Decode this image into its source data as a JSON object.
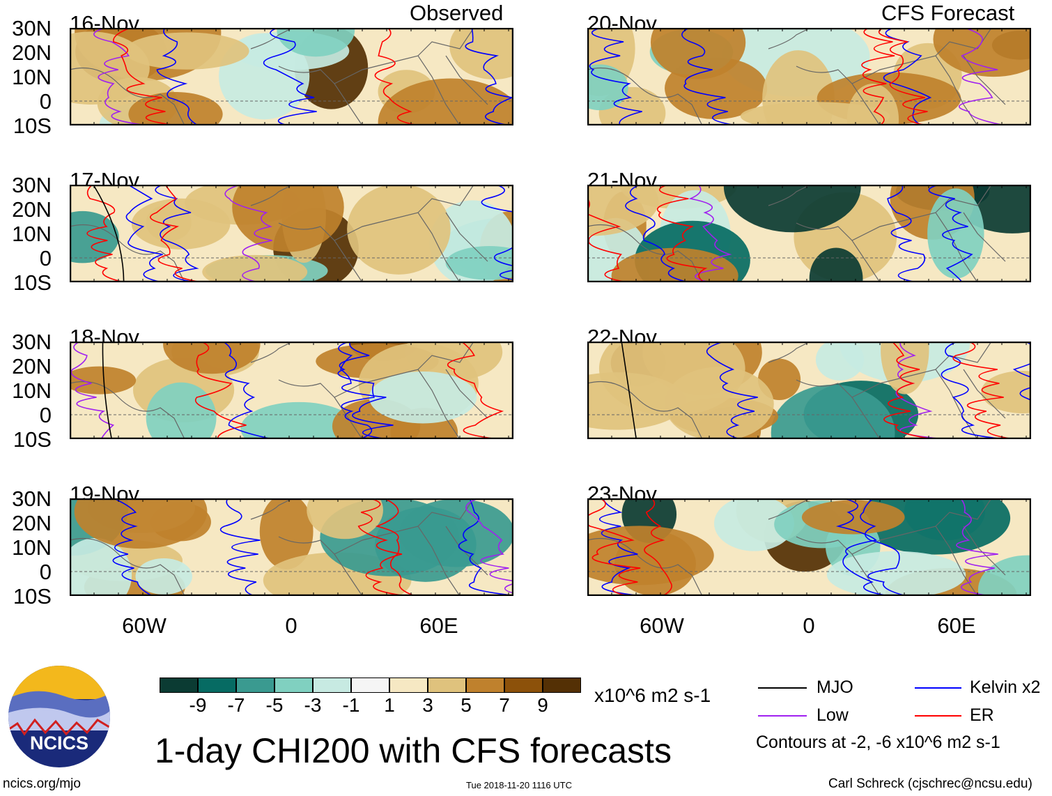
{
  "headers": {
    "left": "Observed",
    "right": "CFS Forecast"
  },
  "panels_left": [
    {
      "date": "16-Nov"
    },
    {
      "date": "17-Nov"
    },
    {
      "date": "18-Nov"
    },
    {
      "date": "19-Nov"
    }
  ],
  "panels_right": [
    {
      "date": "20-Nov"
    },
    {
      "date": "21-Nov"
    },
    {
      "date": "22-Nov"
    },
    {
      "date": "23-Nov"
    }
  ],
  "lat_labels": [
    "30N",
    "20N",
    "10N",
    "0",
    "10S"
  ],
  "lon_labels": [
    "60W",
    "0",
    "60E"
  ],
  "colorbar": {
    "colors": [
      "#0b3b33",
      "#066b63",
      "#3a9a90",
      "#80d0c0",
      "#c7eae2",
      "#f5f5f5",
      "#f6e8c3",
      "#dfc27d",
      "#bf812d",
      "#8c510a",
      "#543005"
    ],
    "labels": [
      "-9",
      "-7",
      "-5",
      "-3",
      "-1",
      "1",
      "3",
      "5",
      "7",
      "9"
    ],
    "units": "x10^6 m2 s-1"
  },
  "legend": {
    "items": [
      {
        "label": "MJO",
        "color": "#000000"
      },
      {
        "label": "Kelvin x2",
        "color": "#0000ff"
      },
      {
        "label": "Low",
        "color": "#a020f0"
      },
      {
        "label": "ER",
        "color": "#ff0000"
      }
    ],
    "contours": "Contours at -2, -6 x10^6 m2 s-1"
  },
  "title": "1-day CHI200 with CFS forecasts",
  "logo_text": "NCICS",
  "footer": {
    "url": "ncics.org/mjo",
    "timestamp": "Tue 2018-11-20 1116 UTC",
    "author": "Carl Schreck (cjschrec@ncsu.edu)"
  }
}
